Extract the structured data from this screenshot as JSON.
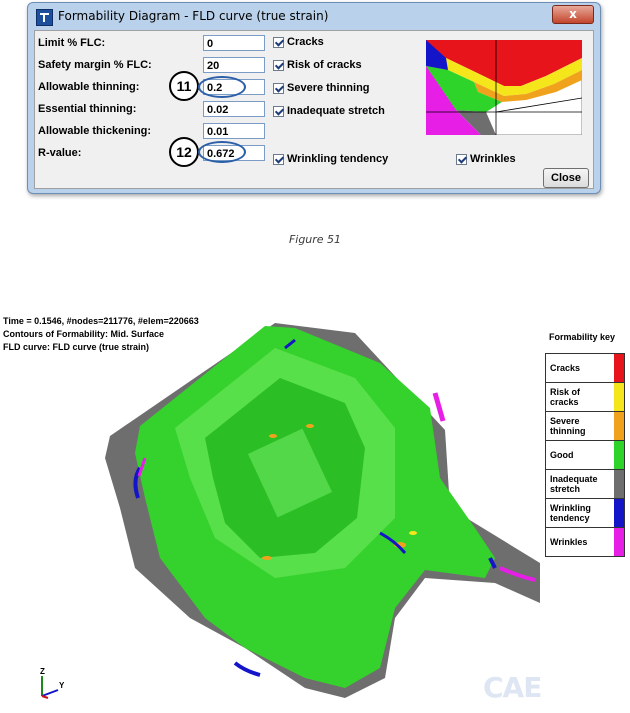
{
  "dialog": {
    "title": "Formability Diagram - FLD curve (true strain)",
    "close_glyph": "x",
    "fields": [
      {
        "label": "Limit % FLC:",
        "value": "0"
      },
      {
        "label": "Safety margin % FLC:",
        "value": "20"
      },
      {
        "label": "Allowable thinning:",
        "value": "0.2"
      },
      {
        "label": "Essential thinning:",
        "value": "0.02"
      },
      {
        "label": "Allowable thickening:",
        "value": "0.01"
      },
      {
        "label": "R-value:",
        "value": "0.672"
      }
    ],
    "checkboxes": [
      {
        "label": "Cracks",
        "checked": true
      },
      {
        "label": "Risk of cracks",
        "checked": true
      },
      {
        "label": "Severe thinning",
        "checked": true
      },
      {
        "label": "Inadequate stretch",
        "checked": true
      },
      {
        "label": "Wrinkling tendency",
        "checked": true
      },
      {
        "label": "Wrinkles",
        "checked": true
      }
    ],
    "callouts": [
      "11",
      "12"
    ],
    "close_button": "Close"
  },
  "caption": "Figure 51",
  "viewport": {
    "header_lines": [
      "Time =      0.1546, #nodes=211776, #elem=220663",
      "Contours of Formability: Mid. Surface",
      "FLD curve: FLD curve (true strain)"
    ],
    "axis": {
      "z": "Z",
      "y": "Y"
    },
    "watermark": "CAE"
  },
  "formability_key": {
    "title": "Formability key",
    "items": [
      {
        "label": "Cracks",
        "color": "#e8141b"
      },
      {
        "label": "Risk of cracks",
        "color": "#f5e61c"
      },
      {
        "label": "Severe thinning",
        "color": "#f0a21c"
      },
      {
        "label": "Good",
        "color": "#2fd42a"
      },
      {
        "label": "Inadequate stretch",
        "color": "#6e6e6e"
      },
      {
        "label": "Wrinkling tendency",
        "color": "#1414c8"
      },
      {
        "label": "Wrinkles",
        "color": "#e61ee6"
      }
    ]
  }
}
